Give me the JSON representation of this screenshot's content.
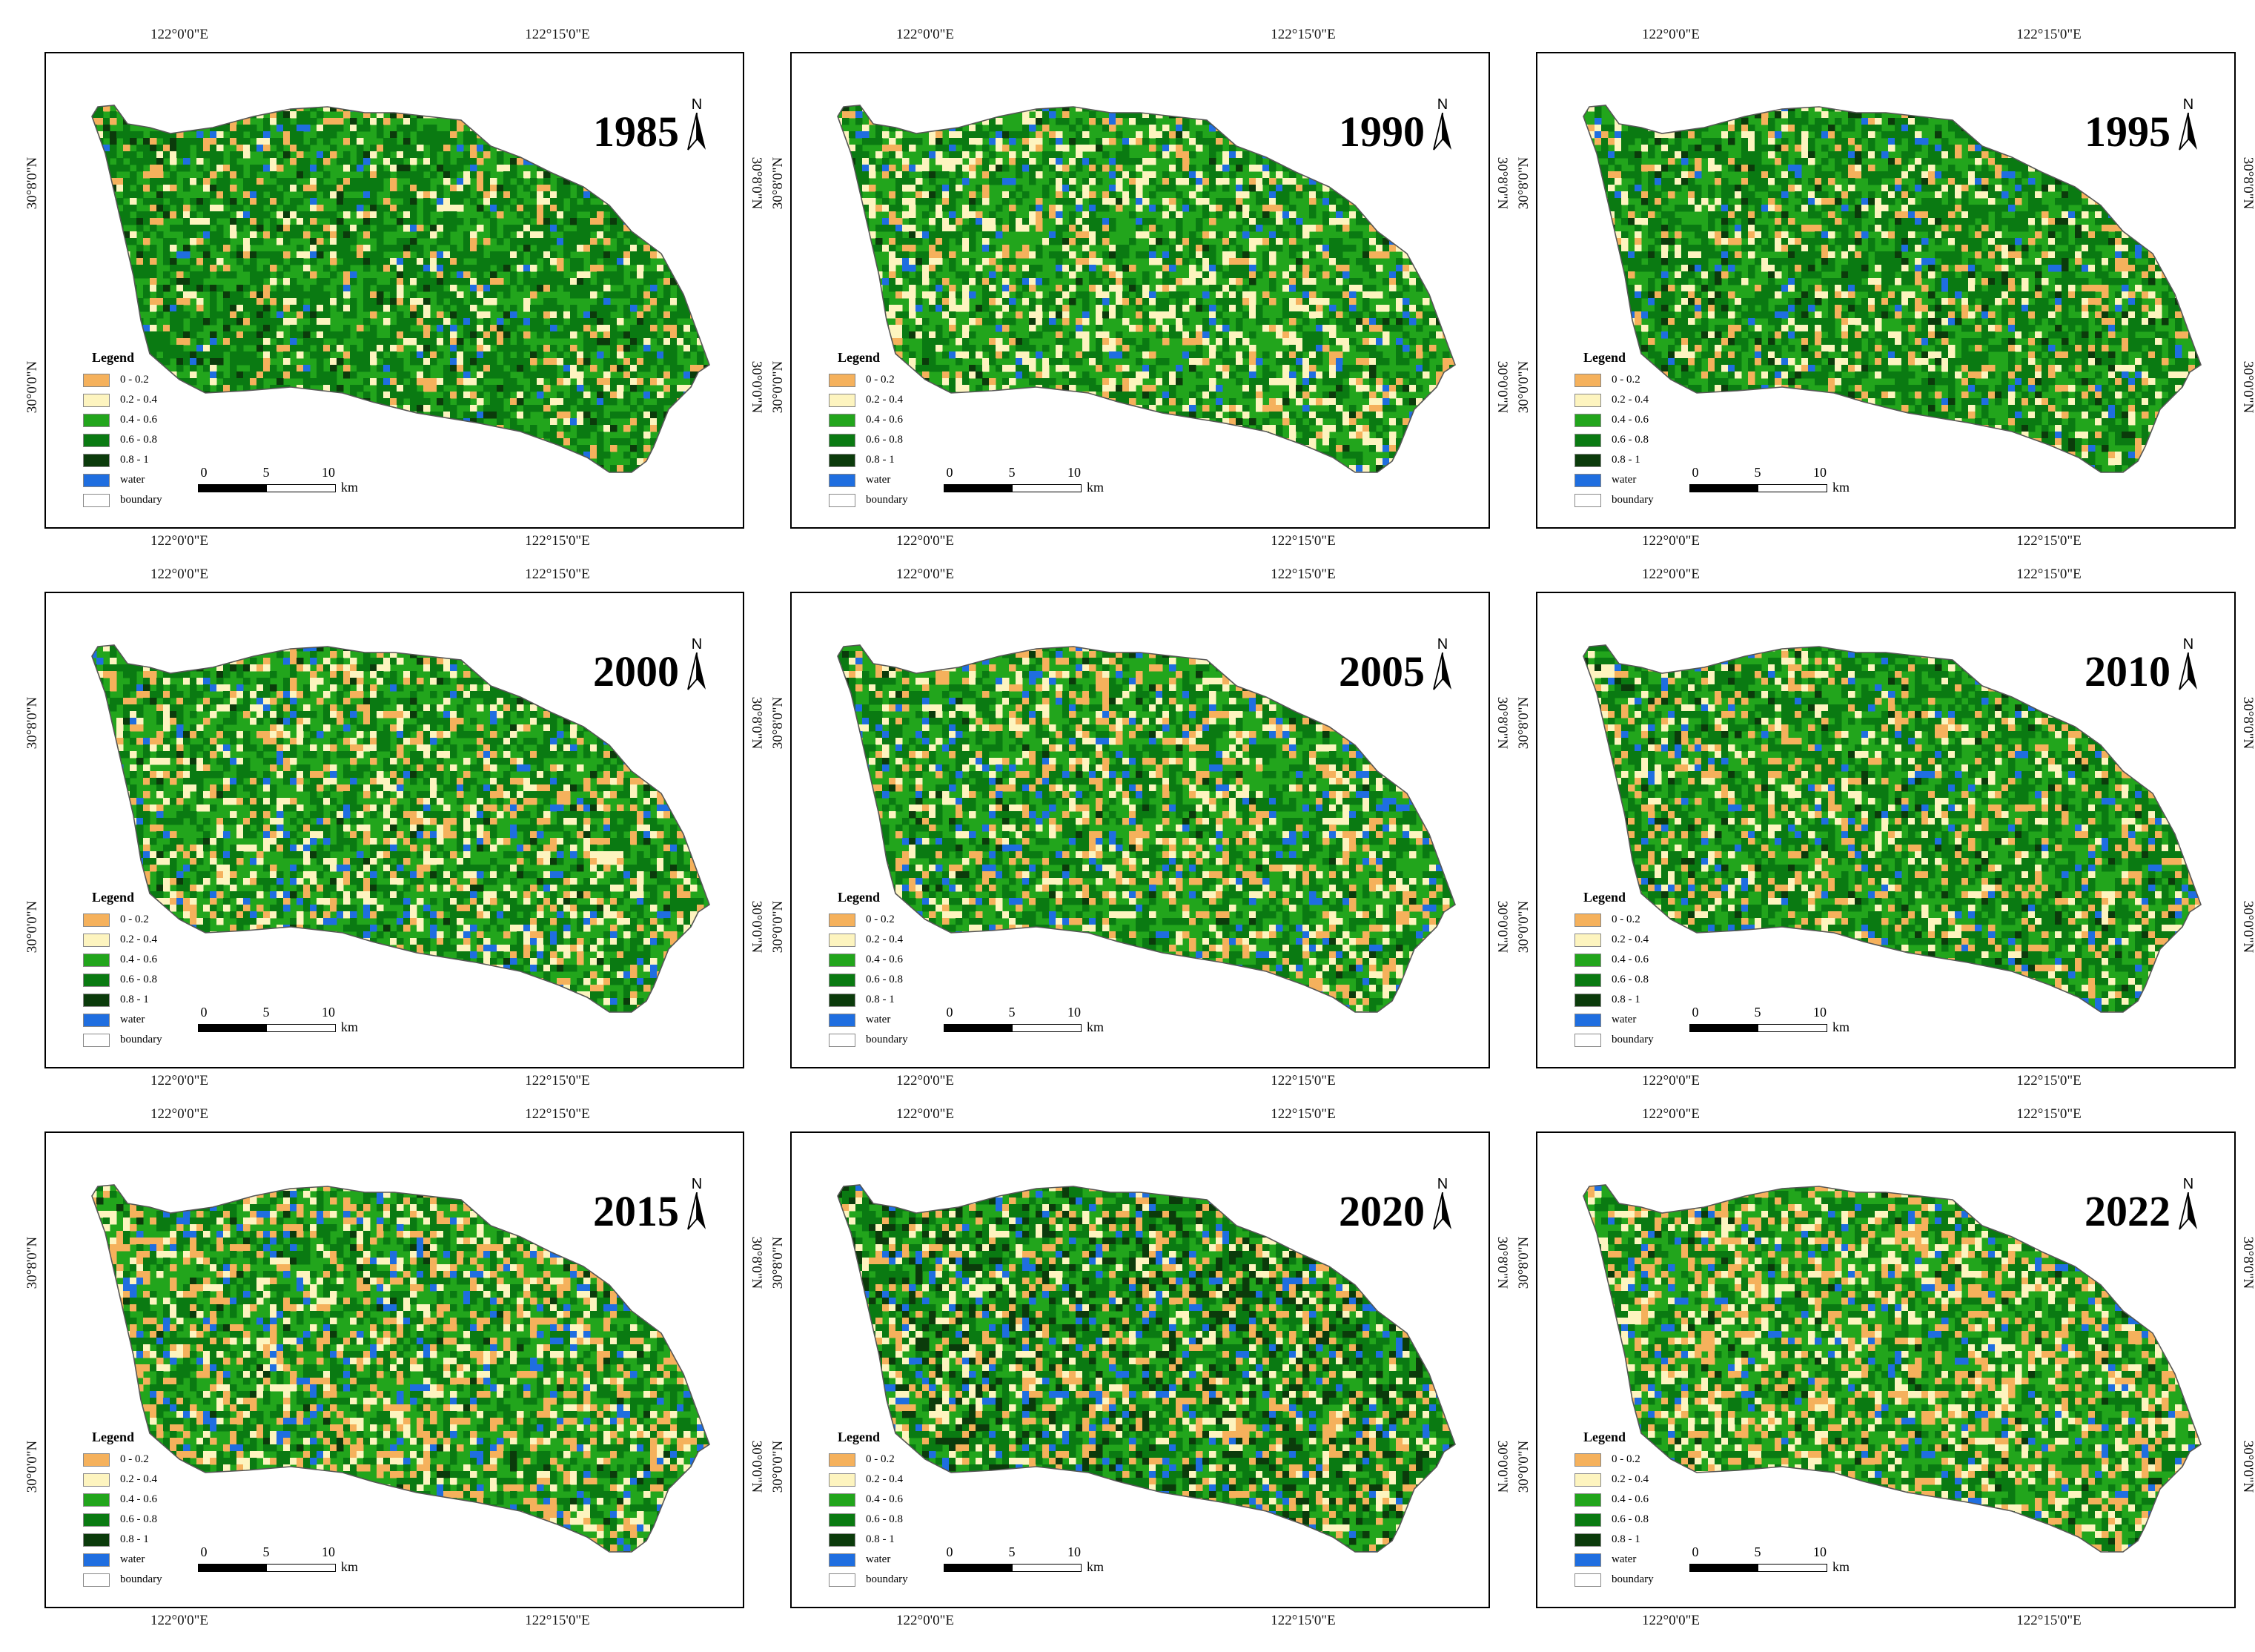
{
  "figure": {
    "coordinates": {
      "lon_left": "122°0'0\"E",
      "lon_right": "122°15'0\"E",
      "lat_upper": "30°8'0\"N",
      "lat_lower": "30°0'0\"N"
    },
    "north_label": "N",
    "legend": {
      "title": "Legend",
      "items": [
        {
          "label": "0 - 0.2",
          "color": "#f5b15c"
        },
        {
          "label": "0.2 - 0.4",
          "color": "#fdf4bf"
        },
        {
          "label": "0.4 - 0.6",
          "color": "#22a51c"
        },
        {
          "label": "0.6 - 0.8",
          "color": "#0a7a12"
        },
        {
          "label": "0.8 - 1",
          "color": "#0b3b0b"
        },
        {
          "label": "water",
          "color": "#1f6ee0"
        },
        {
          "label": "boundary",
          "color": "#ffffff"
        }
      ]
    },
    "scalebar": {
      "ticks": [
        "0",
        "5",
        "10"
      ],
      "unit": "km"
    },
    "panels": [
      {
        "year": "1985",
        "mix": [
          0.08,
          0.08,
          0.32,
          0.44,
          0.05,
          0.03
        ]
      },
      {
        "year": "1990",
        "mix": [
          0.07,
          0.18,
          0.4,
          0.28,
          0.02,
          0.05
        ]
      },
      {
        "year": "1995",
        "mix": [
          0.09,
          0.1,
          0.33,
          0.4,
          0.04,
          0.04
        ]
      },
      {
        "year": "2000",
        "mix": [
          0.12,
          0.14,
          0.38,
          0.29,
          0.02,
          0.05
        ]
      },
      {
        "year": "2005",
        "mix": [
          0.13,
          0.12,
          0.37,
          0.3,
          0.02,
          0.06
        ]
      },
      {
        "year": "2010",
        "mix": [
          0.13,
          0.1,
          0.33,
          0.37,
          0.03,
          0.04
        ]
      },
      {
        "year": "2015",
        "mix": [
          0.16,
          0.12,
          0.36,
          0.28,
          0.02,
          0.06
        ]
      },
      {
        "year": "2020",
        "mix": [
          0.13,
          0.09,
          0.26,
          0.32,
          0.14,
          0.06
        ]
      },
      {
        "year": "2022",
        "mix": [
          0.18,
          0.13,
          0.36,
          0.26,
          0.02,
          0.05
        ]
      }
    ]
  }
}
